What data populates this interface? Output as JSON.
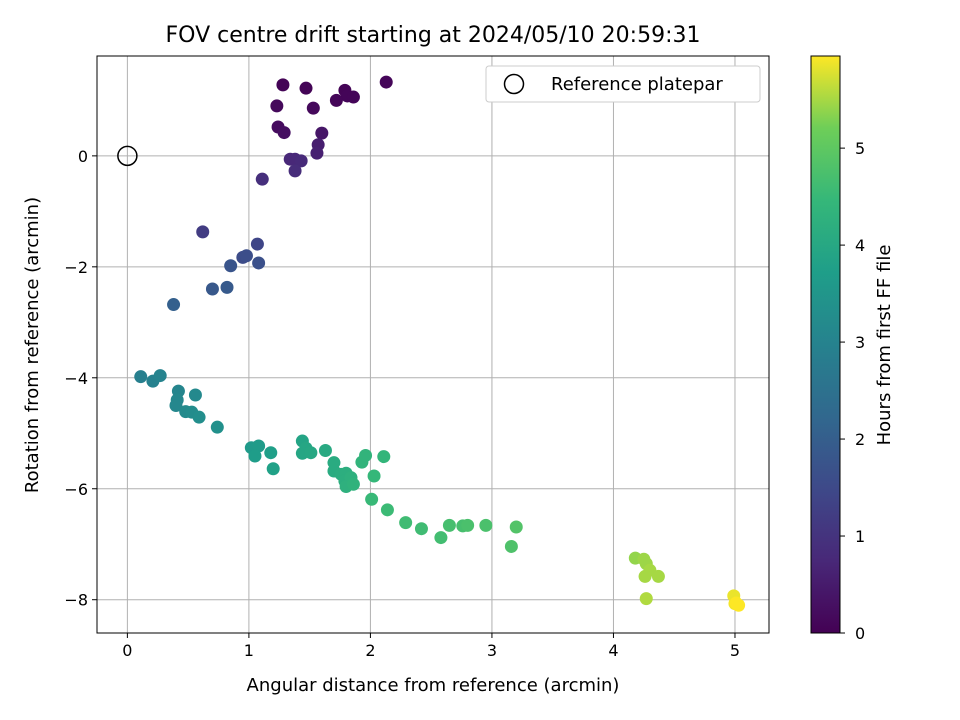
{
  "chart_data": {
    "type": "scatter",
    "title": "FOV centre drift starting at 2024/05/10 20:59:31",
    "xlabel": "Angular distance from reference (arcmin)",
    "ylabel": "Rotation from reference (arcmin)",
    "xlim": [
      -0.25,
      5.28
    ],
    "ylim": [
      -8.6,
      1.8
    ],
    "xticks": [
      0,
      1,
      2,
      3,
      4,
      5
    ],
    "yticks": [
      -8,
      -6,
      -4,
      -2,
      0
    ],
    "grid": true,
    "legend": {
      "position": "top-right",
      "entries": [
        "Reference platepar"
      ]
    },
    "colorbar": {
      "label": "Hours from first FF file",
      "colormap": "viridis",
      "range": [
        0,
        5.95
      ],
      "ticks": [
        0,
        1,
        2,
        3,
        4,
        5
      ]
    },
    "reference_point": {
      "x": 0,
      "y": 0
    },
    "points": [
      {
        "x": 1.28,
        "y": 1.28,
        "c": 0.05
      },
      {
        "x": 1.47,
        "y": 1.22,
        "c": 0.05
      },
      {
        "x": 1.79,
        "y": 1.18,
        "c": 0.05
      },
      {
        "x": 1.81,
        "y": 1.08,
        "c": 0.08
      },
      {
        "x": 1.86,
        "y": 1.06,
        "c": 0.08
      },
      {
        "x": 1.72,
        "y": 1.0,
        "c": 0.08
      },
      {
        "x": 2.13,
        "y": 1.33,
        "c": 0.1
      },
      {
        "x": 1.23,
        "y": 0.9,
        "c": 0.15
      },
      {
        "x": 1.53,
        "y": 0.86,
        "c": 0.15
      },
      {
        "x": 1.24,
        "y": 0.52,
        "c": 0.2
      },
      {
        "x": 1.29,
        "y": 0.42,
        "c": 0.25
      },
      {
        "x": 1.6,
        "y": 0.41,
        "c": 0.4
      },
      {
        "x": 1.57,
        "y": 0.2,
        "c": 0.55
      },
      {
        "x": 1.56,
        "y": 0.05,
        "c": 0.6
      },
      {
        "x": 1.34,
        "y": -0.06,
        "c": 0.75
      },
      {
        "x": 1.38,
        "y": -0.06,
        "c": 0.75
      },
      {
        "x": 1.43,
        "y": -0.09,
        "c": 0.8
      },
      {
        "x": 1.38,
        "y": -0.27,
        "c": 0.85
      },
      {
        "x": 1.11,
        "y": -0.42,
        "c": 0.9
      },
      {
        "x": 0.62,
        "y": -1.37,
        "c": 1.2
      },
      {
        "x": 1.07,
        "y": -1.59,
        "c": 1.4
      },
      {
        "x": 0.95,
        "y": -1.83,
        "c": 1.55
      },
      {
        "x": 0.98,
        "y": -1.8,
        "c": 1.6
      },
      {
        "x": 1.08,
        "y": -1.93,
        "c": 1.65
      },
      {
        "x": 0.85,
        "y": -1.98,
        "c": 1.75
      },
      {
        "x": 0.7,
        "y": -2.4,
        "c": 1.85
      },
      {
        "x": 0.82,
        "y": -2.37,
        "c": 1.9
      },
      {
        "x": 0.38,
        "y": -2.68,
        "c": 2.05
      },
      {
        "x": 0.11,
        "y": -3.98,
        "c": 2.9
      },
      {
        "x": 0.21,
        "y": -4.06,
        "c": 2.95
      },
      {
        "x": 0.27,
        "y": -3.96,
        "c": 3.0
      },
      {
        "x": 0.42,
        "y": -4.24,
        "c": 3.05
      },
      {
        "x": 0.41,
        "y": -4.4,
        "c": 3.1
      },
      {
        "x": 0.4,
        "y": -4.5,
        "c": 3.1
      },
      {
        "x": 0.56,
        "y": -4.31,
        "c": 3.15
      },
      {
        "x": 0.48,
        "y": -4.61,
        "c": 3.2
      },
      {
        "x": 0.53,
        "y": -4.62,
        "c": 3.25
      },
      {
        "x": 0.59,
        "y": -4.71,
        "c": 3.3
      },
      {
        "x": 0.74,
        "y": -4.89,
        "c": 3.35
      },
      {
        "x": 1.02,
        "y": -5.26,
        "c": 3.6
      },
      {
        "x": 1.08,
        "y": -5.23,
        "c": 3.65
      },
      {
        "x": 1.05,
        "y": -5.41,
        "c": 3.7
      },
      {
        "x": 1.18,
        "y": -5.35,
        "c": 3.75
      },
      {
        "x": 1.2,
        "y": -5.64,
        "c": 3.8
      },
      {
        "x": 1.44,
        "y": -5.14,
        "c": 3.9
      },
      {
        "x": 1.47,
        "y": -5.27,
        "c": 3.95
      },
      {
        "x": 1.44,
        "y": -5.36,
        "c": 3.95
      },
      {
        "x": 1.51,
        "y": -5.35,
        "c": 4.0
      },
      {
        "x": 1.63,
        "y": -5.31,
        "c": 4.05
      },
      {
        "x": 1.7,
        "y": -5.53,
        "c": 4.1
      },
      {
        "x": 1.7,
        "y": -5.68,
        "c": 4.1
      },
      {
        "x": 1.76,
        "y": -5.74,
        "c": 4.15
      },
      {
        "x": 1.8,
        "y": -5.72,
        "c": 4.2
      },
      {
        "x": 1.79,
        "y": -5.86,
        "c": 4.2
      },
      {
        "x": 1.84,
        "y": -5.8,
        "c": 4.25
      },
      {
        "x": 1.8,
        "y": -5.96,
        "c": 4.25
      },
      {
        "x": 1.86,
        "y": -5.92,
        "c": 4.3
      },
      {
        "x": 1.93,
        "y": -5.52,
        "c": 4.35
      },
      {
        "x": 1.96,
        "y": -5.4,
        "c": 4.35
      },
      {
        "x": 2.11,
        "y": -5.42,
        "c": 4.4
      },
      {
        "x": 2.03,
        "y": -5.77,
        "c": 4.45
      },
      {
        "x": 2.01,
        "y": -6.19,
        "c": 4.5
      },
      {
        "x": 2.14,
        "y": -6.38,
        "c": 4.55
      },
      {
        "x": 2.29,
        "y": -6.61,
        "c": 4.6
      },
      {
        "x": 2.42,
        "y": -6.72,
        "c": 4.6
      },
      {
        "x": 2.58,
        "y": -6.88,
        "c": 4.65
      },
      {
        "x": 2.65,
        "y": -6.66,
        "c": 4.7
      },
      {
        "x": 2.76,
        "y": -6.67,
        "c": 4.7
      },
      {
        "x": 2.8,
        "y": -6.66,
        "c": 4.75
      },
      {
        "x": 2.95,
        "y": -6.66,
        "c": 4.75
      },
      {
        "x": 3.16,
        "y": -7.04,
        "c": 4.8
      },
      {
        "x": 3.2,
        "y": -6.69,
        "c": 4.85
      },
      {
        "x": 4.18,
        "y": -7.25,
        "c": 5.4
      },
      {
        "x": 4.25,
        "y": -7.27,
        "c": 5.45
      },
      {
        "x": 4.27,
        "y": -7.35,
        "c": 5.45
      },
      {
        "x": 4.3,
        "y": -7.47,
        "c": 5.5
      },
      {
        "x": 4.26,
        "y": -7.58,
        "c": 5.5
      },
      {
        "x": 4.37,
        "y": -7.58,
        "c": 5.5
      },
      {
        "x": 4.27,
        "y": -7.98,
        "c": 5.55
      },
      {
        "x": 4.99,
        "y": -7.93,
        "c": 5.85
      },
      {
        "x": 5.0,
        "y": -8.07,
        "c": 5.9
      },
      {
        "x": 5.03,
        "y": -8.1,
        "c": 5.95
      },
      {
        "x": 5.01,
        "y": -8.06,
        "c": 5.95
      }
    ]
  }
}
